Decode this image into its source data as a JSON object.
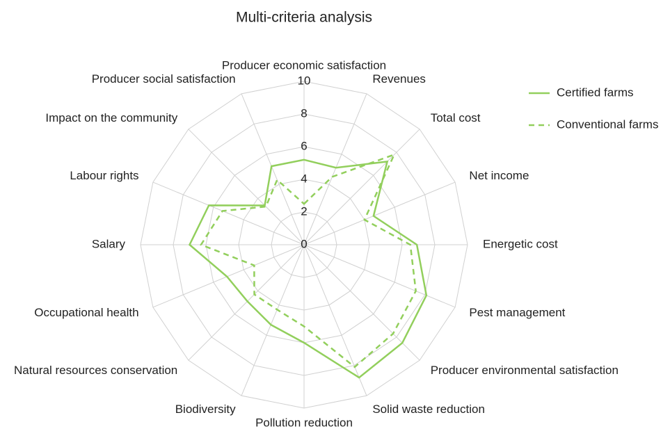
{
  "chart_data": {
    "type": "radar",
    "title": "Multi-criteria analysis",
    "categories": [
      "Producer economic satisfaction",
      "Revenues",
      "Total cost",
      "Net income",
      "Energetic cost",
      "Pest management",
      "Producer environmental satisfaction",
      "Solid waste reduction",
      "Pollution reduction",
      "Biodiversity",
      "Natural resources conservation",
      "Occupational health",
      "Salary",
      "Labour rights",
      "Impact on the community",
      "Producer social satisfaction"
    ],
    "series": [
      {
        "name": "Certified farms",
        "color": "#92cf5c",
        "dash": "solid",
        "values": [
          5.2,
          5.1,
          7.2,
          4.6,
          6.9,
          8.1,
          8.5,
          8.8,
          6.0,
          5.3,
          4.9,
          5.1,
          7.0,
          6.3,
          3.4,
          5.2
        ]
      },
      {
        "name": "Conventional farms",
        "color": "#92cf5c",
        "dash": "dashed",
        "values": [
          2.5,
          4.5,
          7.8,
          4.0,
          6.5,
          7.4,
          7.7,
          8.1,
          5.0,
          4.3,
          4.3,
          3.3,
          6.3,
          5.4,
          3.3,
          4.3
        ]
      }
    ],
    "ylim": [
      0,
      10
    ],
    "yticks": [
      0,
      2,
      4,
      6,
      8,
      10
    ],
    "grid": true,
    "legend": "top-right"
  }
}
